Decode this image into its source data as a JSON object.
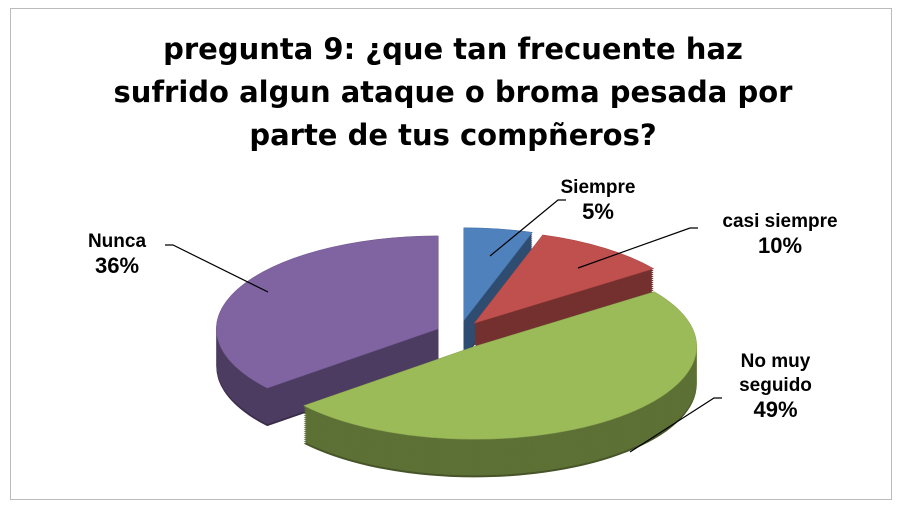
{
  "chart_data": {
    "type": "pie",
    "title": "pregunta 9: ¿que tan frecuente haz sufrido algun ataque o broma pesada por parte de tus compñeros?",
    "categories": [
      "Siempre",
      "casi siempre",
      "No muy seguido",
      "Nunca"
    ],
    "values": [
      5,
      10,
      49,
      36
    ],
    "value_labels": [
      "5%",
      "10%",
      "49%",
      "36%"
    ],
    "colors": [
      "#4f81bd",
      "#c0504d",
      "#9bbb59",
      "#8064a2"
    ],
    "three_d": true,
    "exploded": true
  }
}
